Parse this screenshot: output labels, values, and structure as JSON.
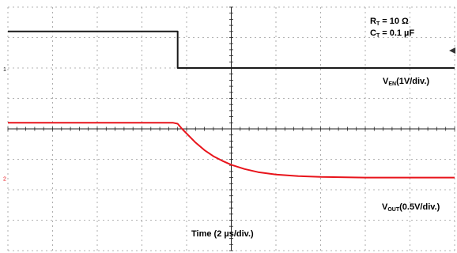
{
  "chart_data": {
    "type": "line",
    "title": "",
    "xlabel": "Time (2 µs/div.)",
    "ylabel": "",
    "x_divisions": 10,
    "y_divisions": 8,
    "xlim": [
      0,
      10
    ],
    "ylim": [
      0,
      8
    ],
    "grid": true,
    "annotations": {
      "rt_label": "R",
      "rt_sub": "T",
      "rt_value": "= 10 Ω",
      "ct_label": "C",
      "ct_sub": "T",
      "ct_value": "= 0.1 µF"
    },
    "series": [
      {
        "name_main": "V",
        "name_sub": "EN",
        "name_scale": "(1V/div.)",
        "color": "#1a1a1a",
        "marker": "1",
        "x": [
          0,
          3.8,
          3.8,
          10
        ],
        "y": [
          7.2,
          7.2,
          6.0,
          6.0
        ]
      },
      {
        "name_main": "V",
        "name_sub": "OUT",
        "name_scale": "(0.5V/div.)",
        "color": "#e8141b",
        "marker": "2",
        "x": [
          0,
          3.7,
          3.8,
          3.9,
          4.0,
          4.2,
          4.4,
          4.6,
          4.8,
          5.0,
          5.3,
          5.6,
          6.0,
          6.5,
          7.0,
          8.0,
          9.0,
          10.0
        ],
        "y": [
          4.2,
          4.2,
          4.17,
          4.0,
          3.85,
          3.55,
          3.3,
          3.1,
          2.95,
          2.82,
          2.68,
          2.58,
          2.5,
          2.45,
          2.42,
          2.4,
          2.4,
          2.4
        ]
      }
    ]
  }
}
